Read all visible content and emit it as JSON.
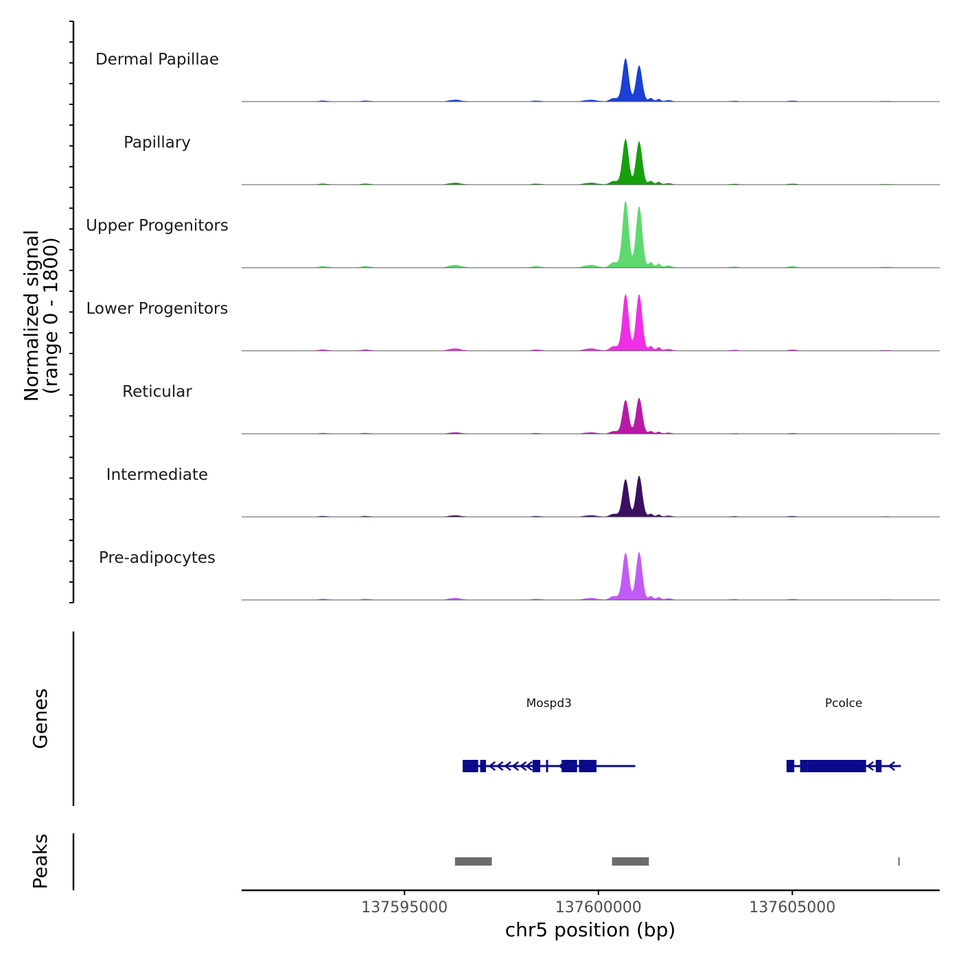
{
  "chart_data": {
    "type": "area",
    "title": "",
    "xlabel": "chr5 position (bp)",
    "ylabel_line1": "Normalized signal",
    "ylabel_line2": "(range 0 - 1800)",
    "yrange": [
      0,
      1800
    ],
    "xlim": [
      137590800,
      137608800
    ],
    "x_ticks": [
      137595000,
      137600000,
      137605000
    ],
    "x_tick_labels": [
      "137595000",
      "137600000",
      "137605000"
    ],
    "panel_labels": {
      "genes": "Genes",
      "peaks": "Peaks"
    },
    "peak_shape": [
      {
        "pos": 137592900,
        "w": 120,
        "h": 0.02
      },
      {
        "pos": 137594000,
        "w": 120,
        "h": 0.02
      },
      {
        "pos": 137596300,
        "w": 150,
        "h": 0.04
      },
      {
        "pos": 137598400,
        "w": 120,
        "h": 0.02
      },
      {
        "pos": 137599800,
        "w": 160,
        "h": 0.04
      },
      {
        "pos": 137600400,
        "w": 100,
        "h": 0.08
      },
      {
        "pos": 137600700,
        "w": 80,
        "h": 1.0
      },
      {
        "pos": 137601050,
        "w": 80,
        "h": 0.95
      },
      {
        "pos": 137601350,
        "w": 60,
        "h": 0.08
      },
      {
        "pos": 137601550,
        "w": 50,
        "h": 0.06
      },
      {
        "pos": 137601800,
        "w": 100,
        "h": 0.03
      },
      {
        "pos": 137603500,
        "w": 100,
        "h": 0.015
      },
      {
        "pos": 137605000,
        "w": 100,
        "h": 0.02
      },
      {
        "pos": 137607400,
        "w": 120,
        "h": 0.01
      }
    ],
    "series": [
      {
        "name": "Dermal Papillae",
        "color": "#1c3fd6",
        "scale": 0.55,
        "peak_ratio": 0.88
      },
      {
        "name": "Papillary",
        "color": "#16a00e",
        "scale": 0.58,
        "peak_ratio": 1.0
      },
      {
        "name": "Upper Progenitors",
        "color": "#5ed96f",
        "scale": 0.85,
        "peak_ratio": 0.97
      },
      {
        "name": "Lower Progenitors",
        "color": "#f02ee6",
        "scale": 0.72,
        "peak_ratio": 1.05
      },
      {
        "name": "Reticular",
        "color": "#b81aa6",
        "scale": 0.43,
        "peak_ratio": 1.12
      },
      {
        "name": "Intermediate",
        "color": "#3b0f62",
        "scale": 0.48,
        "peak_ratio": 1.15
      },
      {
        "name": "Pre-adipocytes",
        "color": "#c05cf5",
        "scale": 0.6,
        "peak_ratio": 1.07
      }
    ],
    "genes": [
      {
        "name": "Mospd3",
        "strand": "-",
        "start": 137596500,
        "end": 137600950,
        "exons": [
          [
            137596500,
            137596900
          ],
          [
            137596950,
            137597100
          ],
          [
            137598300,
            137598500
          ],
          [
            137598650,
            137598700
          ],
          [
            137599050,
            137599450
          ],
          [
            137599500,
            137599650
          ],
          [
            137599650,
            137599950
          ]
        ],
        "arrows": [
          137597250,
          137597450,
          137597650,
          137597850,
          137598050,
          137598200,
          137599050
        ]
      },
      {
        "name": "Pcolce",
        "strand": "-",
        "start": 137604850,
        "end": 137607800,
        "exons": [
          [
            137604850,
            137605050
          ],
          [
            137605200,
            137605400
          ],
          [
            137605400,
            137606900
          ],
          [
            137607150,
            137607300
          ]
        ],
        "arrows": [
          137607000,
          137607550
        ]
      }
    ],
    "peaks": [
      {
        "start": 137596300,
        "end": 137597250
      },
      {
        "start": 137600350,
        "end": 137601300
      },
      {
        "start": 137607750,
        "end": 137607800
      }
    ]
  }
}
